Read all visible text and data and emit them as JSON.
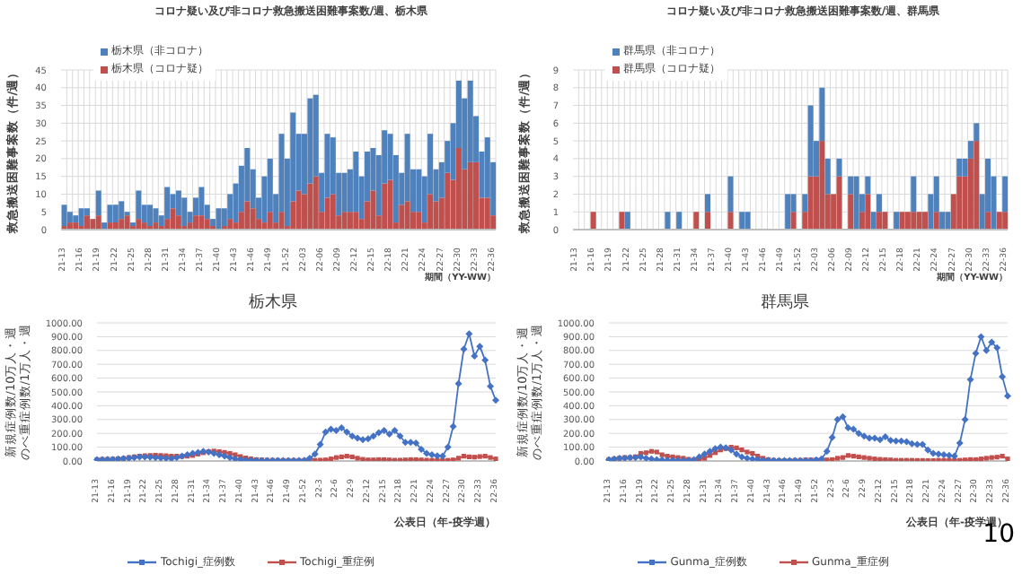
{
  "chart_data": [
    {
      "type": "bar",
      "title": "コロナ疑い及び非コロナ救急搬送困難事案数/週、栃木県",
      "xlabel": "期間（YY-WW）",
      "ylabel": "救急搬送困難事案数（件/週）",
      "stacked": true,
      "grid": true,
      "legend": "top left",
      "categories": [
        "21-13",
        null,
        null,
        "21-16",
        null,
        null,
        "21-19",
        null,
        null,
        "21-22",
        null,
        null,
        "21-25",
        null,
        null,
        "21-28",
        null,
        null,
        "21-31",
        null,
        null,
        "21-34",
        null,
        null,
        "21-37",
        null,
        null,
        "21-40",
        null,
        null,
        "21-43",
        null,
        null,
        "21-46",
        null,
        null,
        "21-49",
        null,
        null,
        "21-52",
        null,
        null,
        "22-03",
        null,
        null,
        "22-06",
        null,
        null,
        "22-09",
        null,
        null,
        "22-12",
        null,
        null,
        "22-15",
        null,
        null,
        "22-18",
        null,
        null,
        "22-21",
        null,
        null,
        "22-24",
        null,
        null,
        "22-27",
        null,
        null,
        "22-30",
        null,
        null,
        "22-33",
        null,
        null,
        "22-36"
      ],
      "ylim": [
        0,
        45
      ],
      "yticks": [
        0,
        5,
        10,
        15,
        20,
        25,
        30,
        35,
        40,
        45
      ],
      "series": [
        {
          "name": "栃木県（コロナ疑）",
          "color": "#c0504d",
          "values": [
            1,
            2,
            2,
            1,
            4,
            3,
            4,
            0,
            2,
            2,
            3,
            4,
            1,
            3,
            2,
            1,
            2,
            1,
            3,
            6,
            4,
            1,
            2,
            4,
            4,
            3,
            1,
            0,
            1,
            3,
            2,
            5,
            8,
            6,
            3,
            2,
            5,
            2,
            5,
            1,
            8,
            11,
            10,
            13,
            15,
            5,
            9,
            10,
            4,
            5,
            5,
            5,
            3,
            8,
            11,
            4,
            13,
            14,
            2,
            7,
            8,
            5,
            5,
            2,
            10,
            8,
            9,
            16,
            14,
            23,
            17,
            19,
            19,
            9,
            9,
            4
          ]
        },
        {
          "name": "栃木県（非コロナ）",
          "color": "#4f81bd",
          "values": [
            6,
            3,
            2,
            5,
            2,
            0,
            7,
            2,
            5,
            5,
            5,
            1,
            1,
            8,
            5,
            6,
            4,
            3,
            9,
            4,
            7,
            8,
            3,
            5,
            8,
            4,
            2,
            6,
            5,
            7,
            11,
            13,
            15,
            11,
            6,
            13,
            15,
            8,
            22,
            19,
            25,
            16,
            17,
            24,
            23,
            11,
            18,
            16,
            12,
            11,
            12,
            17,
            12,
            14,
            12,
            17,
            15,
            13,
            19,
            9,
            19,
            12,
            12,
            13,
            17,
            9,
            10,
            9,
            16,
            19,
            20,
            23,
            13,
            13,
            17,
            15
          ]
        }
      ]
    },
    {
      "type": "bar",
      "title": "コロナ疑い及び非コロナ救急搬送困難事案数/週、群馬県",
      "xlabel": "期間（YY-WW）",
      "ylabel": "救急搬送困難事案数（件/週）",
      "stacked": true,
      "grid": true,
      "legend": "top left",
      "categories": [
        "21-13",
        null,
        null,
        "21-16",
        null,
        null,
        "21-19",
        null,
        null,
        "21-22",
        null,
        null,
        "21-25",
        null,
        null,
        "21-28",
        null,
        null,
        "21-31",
        null,
        null,
        "21-34",
        null,
        null,
        "21-37",
        null,
        null,
        "21-40",
        null,
        null,
        "21-43",
        null,
        null,
        "21-46",
        null,
        null,
        "21-49",
        null,
        null,
        "21-52",
        null,
        null,
        "22-03",
        null,
        null,
        "22-06",
        null,
        null,
        "22-09",
        null,
        null,
        "22-12",
        null,
        null,
        "22-15",
        null,
        null,
        "22-18",
        null,
        null,
        "22-21",
        null,
        null,
        "22-24",
        null,
        null,
        "22-27",
        null,
        null,
        "22-30",
        null,
        null,
        "22-33",
        null,
        null,
        "22-36"
      ],
      "ylim": [
        0,
        9
      ],
      "yticks": [
        0,
        1,
        2,
        3,
        4,
        5,
        6,
        7,
        8,
        9
      ],
      "series": [
        {
          "name": "群馬県（コロナ疑）",
          "color": "#c0504d",
          "values": [
            0,
            0,
            0,
            1,
            0,
            0,
            0,
            0,
            1,
            0,
            0,
            0,
            0,
            0,
            0,
            0,
            0,
            0,
            0,
            0,
            0,
            1,
            0,
            1,
            0,
            0,
            0,
            1,
            0,
            0,
            0,
            0,
            0,
            0,
            0,
            0,
            0,
            0,
            1,
            0,
            1,
            3,
            3,
            5,
            2,
            2,
            3,
            0,
            2,
            0,
            1,
            2,
            0,
            1,
            1,
            0,
            0,
            1,
            1,
            1,
            1,
            1,
            0,
            1,
            0,
            0,
            2,
            3,
            3,
            4,
            5,
            0,
            1,
            0,
            1,
            1
          ]
        },
        {
          "name": "群馬県（非コロナ）",
          "color": "#4f81bd",
          "values": [
            0,
            0,
            0,
            0,
            0,
            0,
            0,
            0,
            0,
            1,
            0,
            0,
            0,
            0,
            0,
            0,
            1,
            0,
            1,
            0,
            0,
            0,
            0,
            1,
            0,
            0,
            0,
            2,
            0,
            1,
            1,
            0,
            0,
            0,
            0,
            0,
            0,
            2,
            1,
            0,
            1,
            4,
            2,
            3,
            2,
            0,
            1,
            0,
            1,
            3,
            1,
            1,
            1,
            1,
            0,
            0,
            1,
            0,
            0,
            2,
            0,
            0,
            2,
            2,
            1,
            1,
            0,
            1,
            1,
            1,
            1,
            2,
            3,
            3,
            0,
            2
          ]
        }
      ]
    },
    {
      "type": "line",
      "title": "栃木県",
      "xlabel": "公表日（年-疫学週）",
      "ylabel": "新規症例数/10万人・週のべ重症例数/1万人・週",
      "grid": "y",
      "legend": "bottom",
      "categories": [
        "21-13",
        null,
        null,
        "21-16",
        null,
        null,
        "21-19",
        null,
        null,
        "21-22",
        null,
        null,
        "21-25",
        null,
        null,
        "21-28",
        null,
        null,
        "21-31",
        null,
        null,
        "21-34",
        null,
        null,
        "21-37",
        null,
        null,
        "21-40",
        null,
        null,
        "21-43",
        null,
        null,
        "21-46",
        null,
        null,
        "21-49",
        null,
        null,
        "21-52",
        null,
        null,
        "22-3",
        null,
        null,
        "22-6",
        null,
        null,
        "22-9",
        null,
        null,
        "22-12",
        null,
        null,
        "22-15",
        null,
        null,
        "22-18",
        null,
        null,
        "22-21",
        null,
        null,
        "22-24",
        null,
        null,
        "22-27",
        null,
        null,
        "22-30",
        null,
        null,
        "22-33",
        null,
        null,
        "22-36"
      ],
      "ylim": [
        0,
        1000
      ],
      "yticks": [
        {
          "value": 0,
          "label": "0.00"
        },
        {
          "value": 100,
          "label": "100.00"
        },
        {
          "value": 200,
          "label": "200.00"
        },
        {
          "value": 300,
          "label": "300.00"
        },
        {
          "value": 400,
          "label": "400.00"
        },
        {
          "value": 500,
          "label": "500.00"
        },
        {
          "value": 600,
          "label": "600.00"
        },
        {
          "value": 700,
          "label": "700.00"
        },
        {
          "value": 800,
          "label": "800.00"
        },
        {
          "value": 900,
          "label": "900.00"
        },
        {
          "value": 1000,
          "label": "1000.00"
        }
      ],
      "series": [
        {
          "name": "Tochigi_症例数",
          "color": "#4472c4",
          "marker": "diamond",
          "values": [
            10,
            10,
            12,
            12,
            15,
            18,
            20,
            25,
            30,
            30,
            28,
            25,
            22,
            20,
            18,
            25,
            35,
            45,
            55,
            62,
            70,
            65,
            55,
            45,
            35,
            25,
            15,
            10,
            6,
            5,
            4,
            4,
            3,
            3,
            3,
            3,
            3,
            3,
            4,
            5,
            20,
            50,
            120,
            210,
            230,
            220,
            240,
            210,
            180,
            165,
            155,
            160,
            180,
            205,
            220,
            195,
            220,
            180,
            135,
            135,
            130,
            85,
            55,
            45,
            38,
            35,
            100,
            250,
            560,
            810,
            920,
            760,
            830,
            730,
            540,
            440
          ]
        },
        {
          "name": "Tochigi_重症例",
          "color": "#c0504d",
          "marker": "square",
          "values": [
            10,
            12,
            12,
            14,
            16,
            18,
            25,
            30,
            35,
            38,
            40,
            42,
            40,
            38,
            35,
            35,
            33,
            35,
            40,
            50,
            60,
            68,
            72,
            68,
            62,
            55,
            45,
            32,
            22,
            15,
            10,
            8,
            6,
            5,
            5,
            4,
            4,
            4,
            4,
            4,
            5,
            5,
            6,
            8,
            15,
            25,
            30,
            35,
            30,
            20,
            12,
            8,
            8,
            10,
            10,
            8,
            6,
            6,
            8,
            10,
            10,
            8,
            6,
            5,
            5,
            5,
            5,
            8,
            20,
            35,
            30,
            28,
            32,
            35,
            25,
            15
          ]
        }
      ]
    },
    {
      "type": "line",
      "title": "群馬県",
      "xlabel": "公表日（年-疫学週）",
      "ylabel": "新規症例数/10万人・週のべ重症例数/1万人・週",
      "grid": "y",
      "legend": "bottom",
      "annotations": [
        "10"
      ],
      "categories": [
        "21-13",
        null,
        null,
        "21-16",
        null,
        null,
        "21-19",
        null,
        null,
        "21-22",
        null,
        null,
        "21-25",
        null,
        null,
        "21-28",
        null,
        null,
        "21-31",
        null,
        null,
        "21-34",
        null,
        null,
        "21-37",
        null,
        null,
        "21-40",
        null,
        null,
        "21-43",
        null,
        null,
        "21-46",
        null,
        null,
        "21-49",
        null,
        null,
        "21-52",
        null,
        null,
        "22-3",
        null,
        null,
        "22-6",
        null,
        null,
        "22-9",
        null,
        null,
        "22-12",
        null,
        null,
        "22-15",
        null,
        null,
        "22-18",
        null,
        null,
        "22-21",
        null,
        null,
        "22-24",
        null,
        null,
        "22-27",
        null,
        null,
        "22-30",
        null,
        null,
        "22-33",
        null,
        null,
        "22-36"
      ],
      "ylim": [
        0,
        1000
      ],
      "yticks": [
        {
          "value": 0,
          "label": "0.00"
        },
        {
          "value": 100,
          "label": "100.00"
        },
        {
          "value": 200,
          "label": "200.00"
        },
        {
          "value": 300,
          "label": "300.00"
        },
        {
          "value": 400,
          "label": "400.00"
        },
        {
          "value": 500,
          "label": "500.00"
        },
        {
          "value": 600,
          "label": "600.00"
        },
        {
          "value": 700,
          "label": "700.00"
        },
        {
          "value": 800,
          "label": "800.00"
        },
        {
          "value": 900,
          "label": "900.00"
        },
        {
          "value": 1000,
          "label": "1000.00"
        }
      ],
      "series": [
        {
          "name": "Gunma_症例数",
          "color": "#4472c4",
          "marker": "diamond",
          "values": [
            10,
            15,
            20,
            20,
            25,
            25,
            30,
            20,
            15,
            10,
            8,
            5,
            5,
            3,
            3,
            5,
            10,
            30,
            50,
            70,
            90,
            100,
            95,
            80,
            50,
            30,
            20,
            15,
            10,
            5,
            5,
            4,
            4,
            3,
            3,
            3,
            3,
            3,
            4,
            8,
            15,
            70,
            170,
            300,
            320,
            240,
            230,
            200,
            180,
            165,
            165,
            155,
            175,
            150,
            145,
            145,
            140,
            125,
            120,
            120,
            80,
            55,
            50,
            45,
            40,
            35,
            130,
            300,
            590,
            780,
            900,
            800,
            860,
            820,
            610,
            470
          ]
        },
        {
          "name": "Gunma_重症例",
          "color": "#c0504d",
          "marker": "square",
          "values": [
            10,
            15,
            20,
            25,
            25,
            30,
            55,
            60,
            70,
            65,
            45,
            35,
            30,
            25,
            20,
            12,
            8,
            10,
            20,
            40,
            60,
            80,
            90,
            100,
            95,
            80,
            65,
            55,
            35,
            20,
            10,
            5,
            3,
            3,
            3,
            5,
            5,
            8,
            8,
            8,
            8,
            8,
            10,
            20,
            25,
            40,
            35,
            30,
            25,
            20,
            15,
            12,
            10,
            8,
            5,
            5,
            5,
            5,
            4,
            4,
            3,
            3,
            5,
            5,
            5,
            5,
            5,
            8,
            10,
            10,
            15,
            20,
            25,
            28,
            35,
            15
          ]
        }
      ]
    }
  ]
}
